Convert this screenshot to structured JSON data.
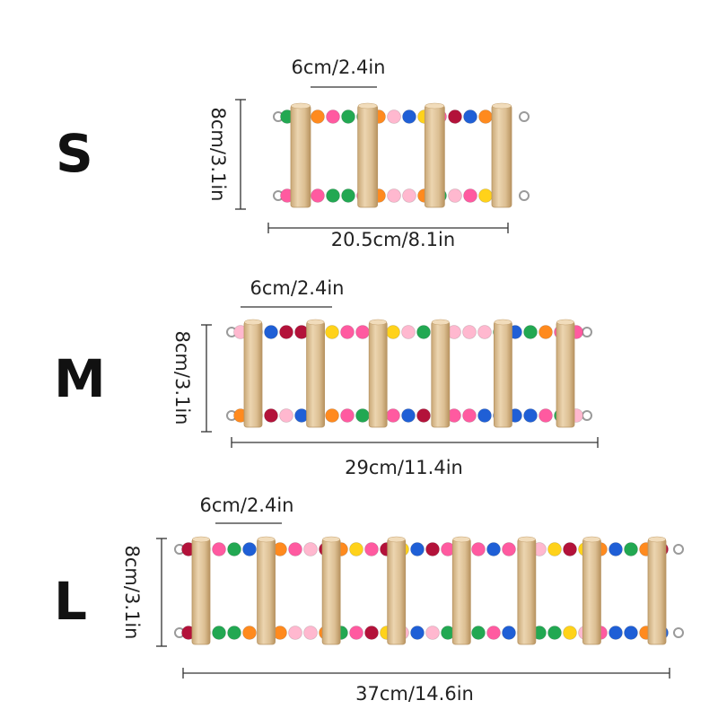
{
  "sizes": [
    {
      "letter": "S",
      "rung_spacing": "6cm/2.4in",
      "height": "8cm/3.1in",
      "length": "20.5cm/8.1in"
    },
    {
      "letter": "M",
      "rung_spacing": "6cm/2.4in",
      "height": "8cm/3.1in",
      "length": "29cm/11.4in"
    },
    {
      "letter": "L",
      "rung_spacing": "6cm/2.4in",
      "height": "8cm/3.1in",
      "length": "37cm/14.6in"
    }
  ],
  "colors": {
    "wood": "#e2c79e",
    "wood_shade": "#c9a877",
    "beads": [
      "#ff8a1e",
      "#ff5aa0",
      "#ffd21a",
      "#22a852",
      "#1f5fd6",
      "#b3123a",
      "#ffb8cf"
    ],
    "hook": "#9a9a9a"
  }
}
